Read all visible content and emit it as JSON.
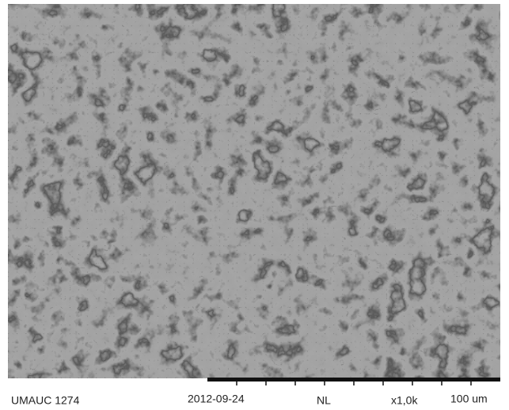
{
  "image_info": {
    "sample_id": "UMAUC 1274",
    "date": "2012-09-24",
    "mode": "NL",
    "magnification": "x1,0k",
    "scale_bar": "100 um"
  }
}
